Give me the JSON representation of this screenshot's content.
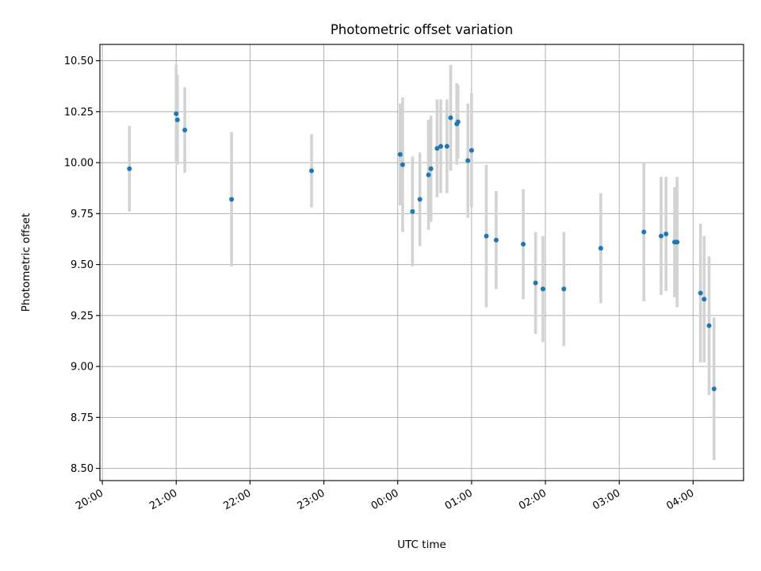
{
  "chart_data": {
    "type": "scatter",
    "title": "Photometric offset variation",
    "xlabel": "UTC time",
    "ylabel": "Photometric offset",
    "x_unit": "UTC time (HH:MM, spanning midnight)",
    "xlim": [
      "19:58",
      "04:41"
    ],
    "ylim": [
      8.44,
      10.58
    ],
    "grid": true,
    "marker_color": "#1f77b4",
    "errorbar_color": "#d3d3d3",
    "x_ticks": [
      "20:00",
      "21:00",
      "22:00",
      "23:00",
      "00:00",
      "01:00",
      "02:00",
      "03:00",
      "04:00"
    ],
    "y_ticks": [
      "8.50",
      "8.75",
      "9.00",
      "9.25",
      "9.50",
      "9.75",
      "10.00",
      "10.25",
      "10.50"
    ],
    "points": [
      {
        "t": "20:22",
        "y": 9.97,
        "err": 0.21
      },
      {
        "t": "21:00",
        "y": 10.24,
        "err": 0.24
      },
      {
        "t": "21:01",
        "y": 10.21,
        "err": 0.22
      },
      {
        "t": "21:07",
        "y": 10.16,
        "err": 0.21
      },
      {
        "t": "21:45",
        "y": 9.82,
        "err": 0.33
      },
      {
        "t": "22:50",
        "y": 9.96,
        "err": 0.18
      },
      {
        "t": "00:02",
        "y": 10.04,
        "err": 0.25
      },
      {
        "t": "00:04",
        "y": 9.99,
        "err": 0.33
      },
      {
        "t": "00:12",
        "y": 9.76,
        "err": 0.27
      },
      {
        "t": "00:18",
        "y": 9.82,
        "err": 0.23
      },
      {
        "t": "00:25",
        "y": 9.94,
        "err": 0.27
      },
      {
        "t": "00:27",
        "y": 9.97,
        "err": 0.26
      },
      {
        "t": "00:32",
        "y": 10.07,
        "err": 0.24
      },
      {
        "t": "00:35",
        "y": 10.08,
        "err": 0.23
      },
      {
        "t": "00:40",
        "y": 10.08,
        "err": 0.23
      },
      {
        "t": "00:43",
        "y": 10.22,
        "err": 0.26
      },
      {
        "t": "00:48",
        "y": 10.19,
        "err": 0.2
      },
      {
        "t": "00:49",
        "y": 10.2,
        "err": 0.18
      },
      {
        "t": "00:57",
        "y": 10.01,
        "err": 0.28
      },
      {
        "t": "01:00",
        "y": 10.06,
        "err": 0.28
      },
      {
        "t": "01:12",
        "y": 9.64,
        "err": 0.35
      },
      {
        "t": "01:20",
        "y": 9.62,
        "err": 0.24
      },
      {
        "t": "01:42",
        "y": 9.6,
        "err": 0.27
      },
      {
        "t": "01:52",
        "y": 9.41,
        "err": 0.25
      },
      {
        "t": "01:58",
        "y": 9.38,
        "err": 0.26
      },
      {
        "t": "02:15",
        "y": 9.38,
        "err": 0.28
      },
      {
        "t": "02:45",
        "y": 9.58,
        "err": 0.27
      },
      {
        "t": "03:20",
        "y": 9.66,
        "err": 0.34
      },
      {
        "t": "03:34",
        "y": 9.64,
        "err": 0.29
      },
      {
        "t": "03:38",
        "y": 9.65,
        "err": 0.28
      },
      {
        "t": "03:45",
        "y": 9.61,
        "err": 0.27
      },
      {
        "t": "03:47",
        "y": 9.61,
        "err": 0.32
      },
      {
        "t": "04:06",
        "y": 9.36,
        "err": 0.34
      },
      {
        "t": "04:09",
        "y": 9.33,
        "err": 0.31
      },
      {
        "t": "04:13",
        "y": 9.2,
        "err": 0.34
      },
      {
        "t": "04:17",
        "y": 8.89,
        "err": 0.35
      }
    ]
  }
}
